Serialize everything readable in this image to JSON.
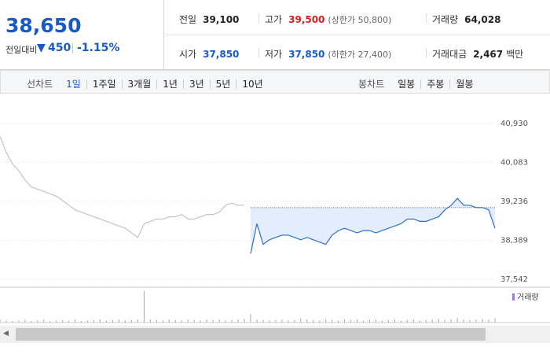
{
  "header": {
    "price": "38,650",
    "change_label": "전일대비",
    "change": "450",
    "change_pct": "-1.15%",
    "stats": [
      {
        "label": "전일",
        "value": "39,100"
      },
      {
        "label": "고가",
        "value": "39,500",
        "note": "(상한가 50,800)"
      },
      {
        "label": "거래량",
        "value": "64,028"
      },
      {
        "label": "시가",
        "value": "37,850"
      },
      {
        "label": "저가",
        "value": "37,850",
        "note": "(하한가 27,400)"
      },
      {
        "label": "거래대금",
        "value": "2,467",
        "unit": "백만"
      }
    ]
  },
  "tabs": {
    "period_label": "선차트",
    "periods": [
      "1일",
      "1주일",
      "3개월",
      "1년",
      "3년",
      "5년",
      "10년"
    ],
    "active": 0,
    "candle_label": "봉차트",
    "candles": [
      "일봉",
      "주봉",
      "월봉"
    ]
  },
  "chart_data": {
    "type": "line",
    "ylim": [
      37370,
      41390
    ],
    "yticks": [
      {
        "value": 40930,
        "label": "40,930"
      },
      {
        "value": 40083,
        "label": "40,083"
      },
      {
        "value": 39236,
        "label": "39,236"
      },
      {
        "value": 38389,
        "label": "38,389"
      },
      {
        "value": 37542,
        "label": "37,542"
      }
    ],
    "reference": 39100,
    "series": [
      {
        "color": "#c4c4c4",
        "values": [
          40650,
          40300,
          40050,
          39900,
          39700,
          39550,
          39500,
          39450,
          39400,
          39350,
          39250,
          39150,
          39050,
          39000,
          38950,
          38900,
          38850,
          38800,
          38750,
          38700,
          38650,
          38550,
          38450,
          38750,
          38800,
          38850,
          38850,
          38900,
          38900,
          38950,
          38850,
          38850,
          38900,
          38950,
          38950,
          39000,
          39150,
          39200,
          39150,
          39150,
          null,
          null,
          null,
          null,
          null,
          null,
          null,
          null,
          null,
          null,
          null,
          null,
          null,
          null,
          null,
          null,
          null,
          null,
          null,
          null,
          null,
          null,
          null,
          null,
          null,
          null,
          null,
          null,
          null,
          null,
          null,
          null,
          null,
          null,
          null,
          null,
          null,
          null,
          null,
          null
        ]
      },
      {
        "color": "#2f6fc9",
        "values": [
          null,
          null,
          null,
          null,
          null,
          null,
          null,
          null,
          null,
          null,
          null,
          null,
          null,
          null,
          null,
          null,
          null,
          null,
          null,
          null,
          null,
          null,
          null,
          null,
          null,
          null,
          null,
          null,
          null,
          null,
          null,
          null,
          null,
          null,
          null,
          null,
          null,
          null,
          null,
          null,
          38100,
          38750,
          38300,
          38400,
          38450,
          38500,
          38500,
          38450,
          38400,
          38450,
          38400,
          38350,
          38300,
          38500,
          38600,
          38650,
          38600,
          38550,
          38600,
          38600,
          38550,
          38600,
          38650,
          38700,
          38750,
          38850,
          38850,
          38800,
          38800,
          38850,
          38900,
          39050,
          39150,
          39300,
          39150,
          39150,
          39100,
          39100,
          39050,
          38650
        ]
      }
    ],
    "volume_label": "거래량",
    "volume_color": "#a8a8a8",
    "volume": [
      300,
      200,
      150,
      200,
      250,
      150,
      200,
      300,
      150,
      200,
      250,
      200,
      300,
      150,
      200,
      250,
      300,
      200,
      250,
      300,
      200,
      250,
      300,
      3000,
      300,
      250,
      200,
      300,
      250,
      200,
      300,
      250,
      200,
      300,
      250,
      300,
      200,
      250,
      300,
      350,
      800,
      300,
      250,
      200,
      250,
      300,
      200,
      250,
      400,
      300,
      250,
      200,
      300,
      250,
      200,
      300,
      250,
      300,
      200,
      250,
      300,
      200,
      250,
      300,
      200,
      250,
      300,
      200,
      250,
      300,
      350,
      250,
      300,
      450,
      300,
      250,
      300,
      350,
      300,
      400
    ]
  }
}
